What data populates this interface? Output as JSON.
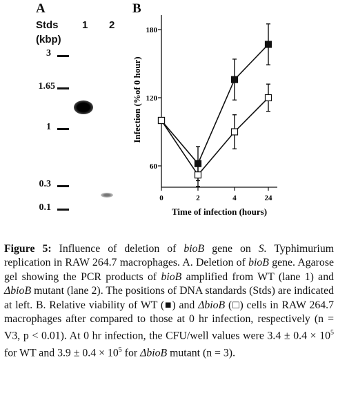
{
  "panel_a": {
    "letter": "A",
    "header_stds": "Stds",
    "header_unit": "(kbp)",
    "lane1": "1",
    "lane2": "2",
    "standards": [
      "3",
      "1.65",
      "1",
      "0.3",
      "0.1"
    ]
  },
  "panel_b": {
    "letter": "B"
  },
  "chart_data": {
    "type": "line",
    "ylabel": "Infection (%of 0 hour)",
    "xlabel": "Time of infection (hours)",
    "x_categories": [
      "0",
      "2",
      "4",
      "24"
    ],
    "y_ticks": [
      "60",
      "120",
      "180"
    ],
    "ylim": [
      50,
      190
    ],
    "series": [
      {
        "marker": "filled-square",
        "values": [
          100,
          62,
          136,
          167
        ],
        "errors": [
          0,
          15,
          18,
          18
        ]
      },
      {
        "marker": "open-square",
        "values": [
          100,
          52,
          90,
          120
        ],
        "errors": [
          0,
          10,
          15,
          12
        ]
      }
    ]
  },
  "caption": {
    "fig_label": "Figure 5:",
    "line1_a": " Influence of deletion of ",
    "bioB": "bioB",
    "line1_b": " gene on ",
    "species": "S.",
    "line1_c": " Typhimurium replication in RAW 264.7 macrophages. A. Deletion of ",
    "line2_a": " gene. Agarose gel showing the PCR products of ",
    "line2_b": " amplified from WT (lane 1) and ",
    "delta_bioB": "ΔbioB",
    "line3_a": " mutant (lane 2). The positions of DNA standards (Stds) are indicated at left. B. Relative viability of WT (",
    "filled_square": "■",
    "line3_b": ") and ",
    "line3_c": " (",
    "open_square": "□",
    "line3_d": ") cells in RAW 264.7 macrophages after compared to those at 0 hr infection, respectively (n = V3, p < 0.01). At 0 hr infection, the CFU/well values were 3.4 ± 0.4 × 10",
    "exp": "5",
    "line4_a": " for WT and 3.9 ± 0.4 × 10",
    "line4_b": " for ",
    "line4_c": " mutant (n = 3)."
  }
}
